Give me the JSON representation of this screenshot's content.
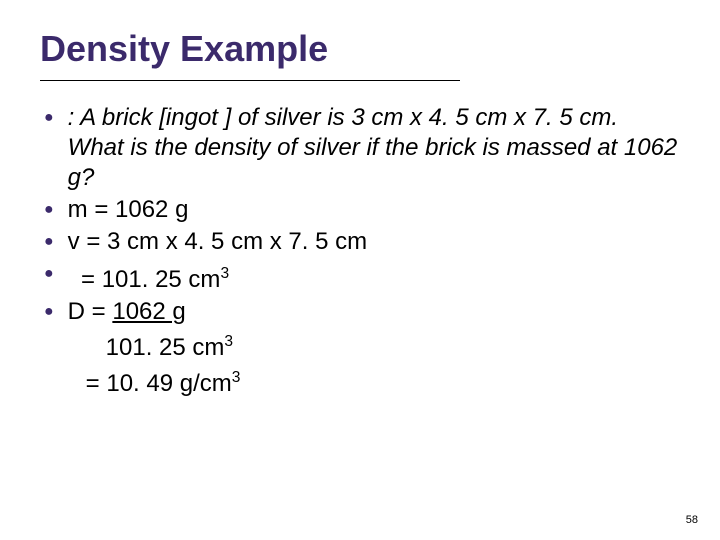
{
  "slide": {
    "title": "Density Example",
    "title_color": "#3b2a6b",
    "bullet_color": "#3b2a6b",
    "title_fontsize": 36,
    "body_fontsize": 24,
    "background_color": "#ffffff",
    "page_number": "58",
    "bullets": [
      {
        "name": "bullet-problem",
        "html": "<span class='italic'>:  A brick [ingot ] of silver is 3 cm x 4. 5 cm x 7. 5 cm.  What is the density of silver if the brick is massed at 1062 g?</span>"
      },
      {
        "name": "bullet-mass",
        "html": "m = 1062 g"
      },
      {
        "name": "bullet-volume",
        "html": "v = 3 cm x 4. 5 cm x 7. 5 cm"
      },
      {
        "name": "bullet-vol-result",
        "html": "&nbsp;&nbsp;= 101. 25 cm<sup>3</sup>"
      },
      {
        "name": "bullet-density",
        "html": "D = <span class='underline'>1062 g</span><br><span class='indent1'>101. 25 cm<sup>3</sup></span><br><span class='indent2'>= 10. 49 g/cm<sup>3</sup></span>"
      }
    ]
  }
}
